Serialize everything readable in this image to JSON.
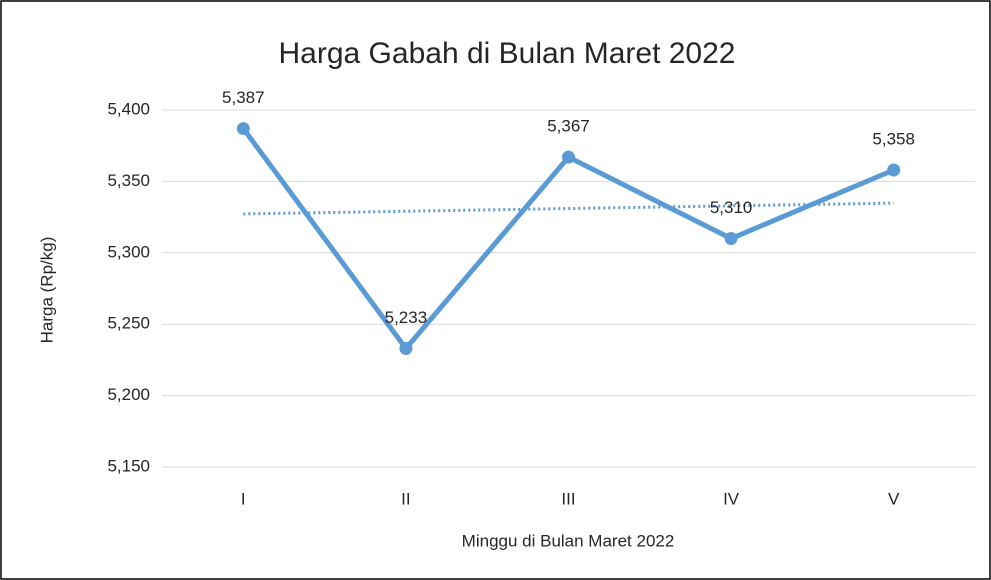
{
  "chart_data": {
    "type": "line",
    "title": "Harga Gabah di Bulan Maret 2022",
    "x_label": "Minggu di Bulan Maret 2022",
    "y_label": "Harga (Rp/kg)",
    "categories": [
      "I",
      "II",
      "III",
      "IV",
      "V"
    ],
    "series": [
      {
        "name": "Harga",
        "color": "#5b9bd5",
        "values": [
          5387,
          5233,
          5367,
          5310,
          5358
        ],
        "value_labels": [
          "5,387",
          "5,233",
          "5,367",
          "5,310",
          "5,358"
        ]
      }
    ],
    "ylim": [
      5150,
      5400
    ],
    "yticks": [
      {
        "value": 5150,
        "label": "5,150"
      },
      {
        "value": 5200,
        "label": "5,200"
      },
      {
        "value": 5250,
        "label": "5,250"
      },
      {
        "value": 5300,
        "label": "5,300"
      },
      {
        "value": 5350,
        "label": "5,350"
      },
      {
        "value": 5400,
        "label": "5,400"
      }
    ],
    "grid": true,
    "trendline": "linear"
  }
}
